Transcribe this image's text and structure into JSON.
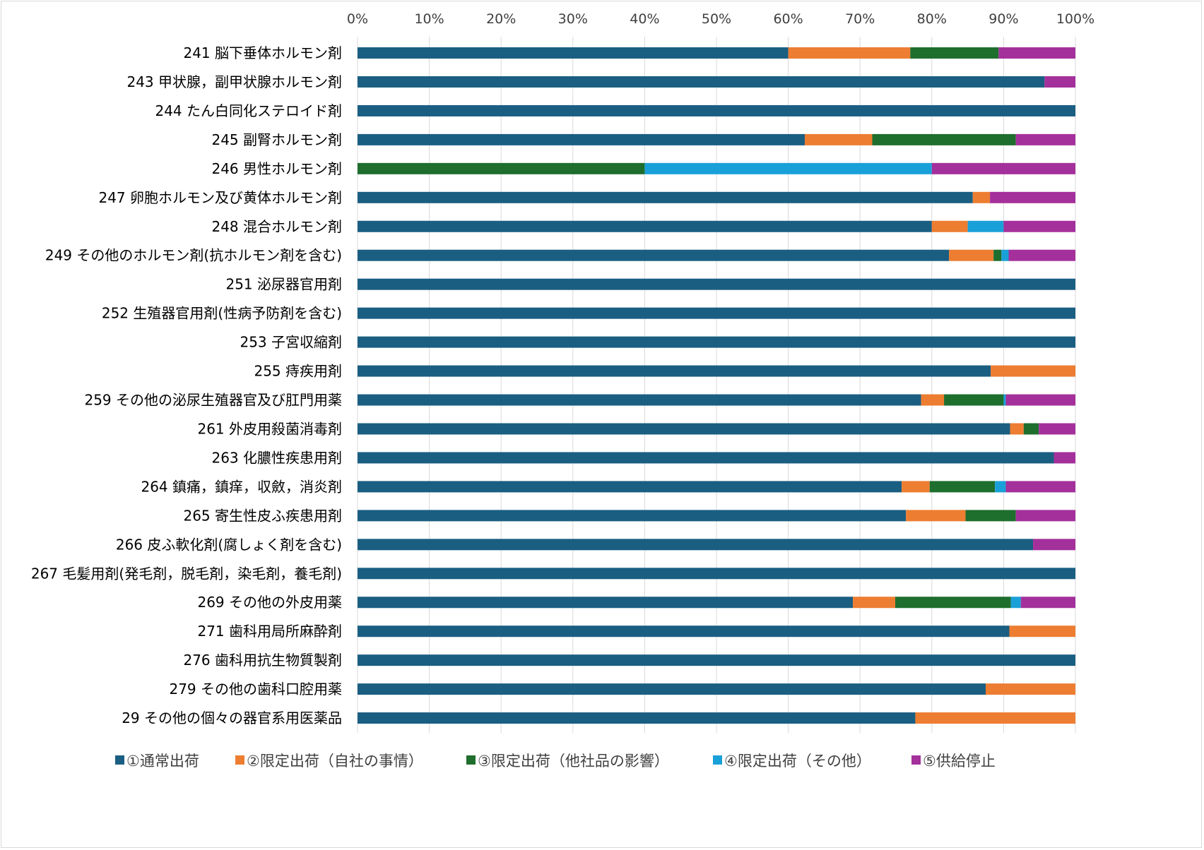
{
  "chart_data": {
    "type": "bar",
    "orientation": "horizontal",
    "stacked": "percent",
    "title": "",
    "xlabel": "",
    "ylabel": "",
    "xlim": [
      0,
      100
    ],
    "x_ticks": [
      "0%",
      "10%",
      "20%",
      "30%",
      "40%",
      "50%",
      "60%",
      "70%",
      "80%",
      "90%",
      "100%"
    ],
    "grid": true,
    "legend_position": "bottom",
    "categories": [
      "241 脳下垂体ホルモン剤",
      "243 甲状腺，副甲状腺ホルモン剤",
      "244 たん白同化ステロイド剤",
      "245 副腎ホルモン剤",
      "246 男性ホルモン剤",
      "247 卵胞ホルモン及び黄体ホルモン剤",
      "248 混合ホルモン剤",
      "249 その他のホルモン剤(抗ホルモン剤を含む)",
      "251 泌尿器官用剤",
      "252 生殖器官用剤(性病予防剤を含む)",
      "253 子宮収縮剤",
      "255 痔疾用剤",
      "259 その他の泌尿生殖器官及び肛門用薬",
      "261 外皮用殺菌消毒剤",
      "263 化膿性疾患用剤",
      "264 鎮痛，鎮痒，収斂，消炎剤",
      "265 寄生性皮ふ疾患用剤",
      "266 皮ふ軟化剤(腐しょく剤を含む)",
      "267 毛髪用剤(発毛剤，脱毛剤，染毛剤，養毛剤)",
      "269 その他の外皮用薬",
      "271 歯科用局所麻酔剤",
      "276 歯科用抗生物質製剤",
      "279 その他の歯科口腔用薬",
      "29 その他の個々の器官系用医薬品"
    ],
    "series": [
      {
        "name": "①通常出荷",
        "color": "#1a5e82",
        "values": [
          60.0,
          95.7,
          100,
          62.3,
          0,
          85.7,
          80.0,
          82.4,
          100,
          100,
          100,
          88.2,
          78.5,
          90.9,
          97.0,
          75.8,
          76.4,
          94.1,
          100,
          69.0,
          90.8,
          100,
          87.5,
          77.7
        ]
      },
      {
        "name": "②限定出荷（自社の事情）",
        "color": "#ed7d31",
        "values": [
          17.0,
          0,
          0,
          9.4,
          0,
          2.4,
          5.0,
          6.2,
          0,
          0,
          0,
          11.8,
          3.2,
          1.9,
          0,
          3.9,
          8.3,
          0,
          0,
          5.9,
          9.2,
          0,
          12.5,
          22.3
        ]
      },
      {
        "name": "③限定出荷（他社品の影響）",
        "color": "#1e6e2d",
        "values": [
          12.3,
          0,
          0,
          20.0,
          40.0,
          0,
          0,
          1.1,
          0,
          0,
          0,
          0,
          8.3,
          2.1,
          0,
          9.1,
          7.0,
          0,
          0,
          16.1,
          0,
          0,
          0,
          0
        ]
      },
      {
        "name": "④限定出荷（その他）",
        "color": "#1aa0d8",
        "values": [
          0,
          0,
          0,
          0,
          40.0,
          0,
          5.0,
          1.0,
          0,
          0,
          0,
          0,
          0.3,
          0,
          0,
          1.5,
          0,
          0,
          0,
          1.4,
          0,
          0,
          0,
          0
        ]
      },
      {
        "name": "⑤供給停止",
        "color": "#a4309b",
        "values": [
          10.7,
          4.3,
          0,
          8.3,
          20.0,
          11.9,
          10.0,
          9.3,
          0,
          0,
          0,
          0,
          9.7,
          5.1,
          3.0,
          9.7,
          8.3,
          5.9,
          0,
          7.6,
          0,
          0,
          0,
          0
        ]
      }
    ]
  }
}
